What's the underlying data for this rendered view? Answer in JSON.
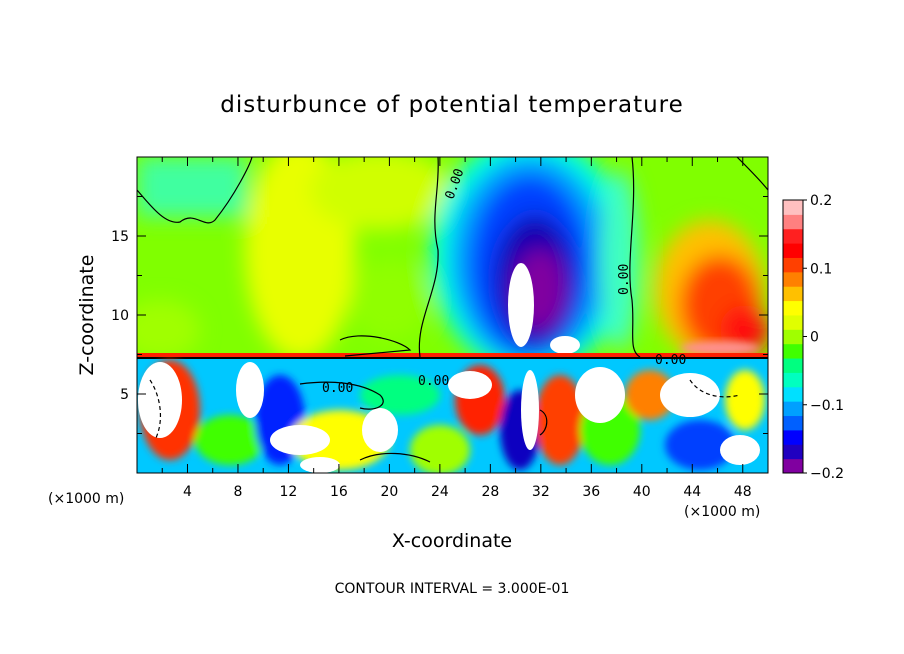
{
  "chart_data": {
    "type": "heatmap",
    "title": "disturbunce of potential temperature",
    "xlabel": "X-coordinate",
    "ylabel": "Z-coordinate",
    "x_unit": "(×1000 m)",
    "z_unit": "(×1000 m)",
    "xlim": [
      0,
      50
    ],
    "ylim": [
      0,
      20
    ],
    "x_ticks": [
      "4",
      "8",
      "12",
      "16",
      "20",
      "24",
      "28",
      "32",
      "36",
      "40",
      "44",
      "48"
    ],
    "y_ticks": [
      "5",
      "10",
      "15"
    ],
    "colorbar": {
      "range": [
        -0.2,
        0.2
      ],
      "tick_labels": [
        "0.2",
        "0.1",
        "0",
        "−0.1",
        "−0.2"
      ],
      "colors": [
        "#8000a0",
        "#2000c0",
        "#0000ff",
        "#0060ff",
        "#00a0ff",
        "#00e0ff",
        "#00ffc0",
        "#00ff80",
        "#40ff00",
        "#a0ff00",
        "#e0ff00",
        "#ffff00",
        "#ffc000",
        "#ff8000",
        "#ff4000",
        "#ff0000",
        "#ff2020",
        "#ff8080",
        "#ffc0c0"
      ]
    },
    "contour_labels": [
      "0.00",
      "0.00",
      "0.00",
      "0.00",
      "0.00"
    ],
    "features": [
      {
        "name": "cold anomaly",
        "x": 31,
        "z": 12,
        "value": -0.2
      },
      {
        "name": "warm anomaly",
        "x": 46,
        "z": 10,
        "value": 0.15
      },
      {
        "name": "warm band",
        "x": 13,
        "z": 15,
        "value": 0.05
      }
    ],
    "contour_interval_label": "CONTOUR INTERVAL = 3.000E-01"
  }
}
